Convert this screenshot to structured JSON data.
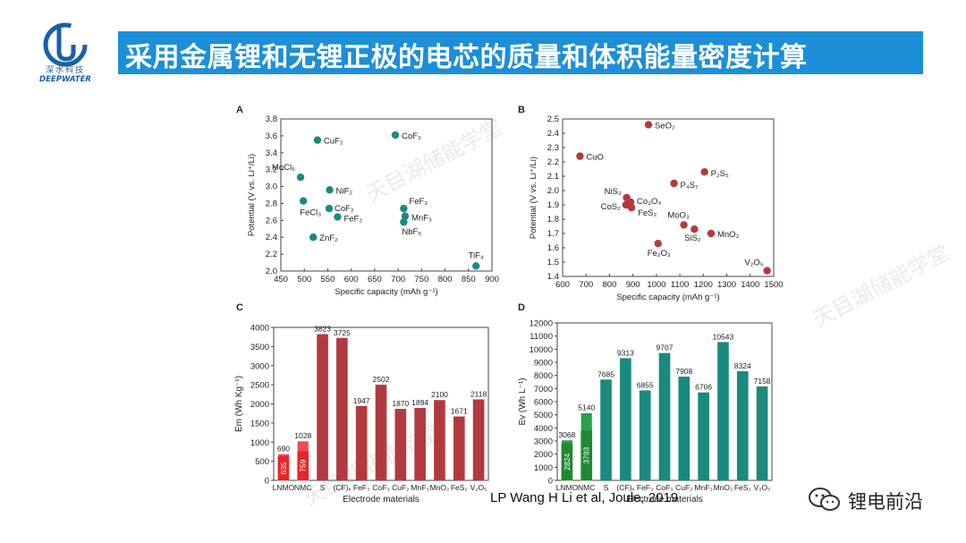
{
  "header": {
    "title": "采用金属锂和无锂正极的电芯的质量和体积能量密度计算",
    "logo_name": "深水科技",
    "logo_sub": "DEEPWATER"
  },
  "watermark": {
    "text": "天目湖储能学堂"
  },
  "citation": "LP Wang H Li et al, Joule, 2019",
  "wechat": {
    "label": "锂电前沿"
  },
  "colors": {
    "title_bg": "#1c8fd8",
    "teal": "#1b8a7e",
    "red": "#b23a3f",
    "bright_red": "#e8252a",
    "green": "#1d8a2e"
  },
  "chart_data": [
    {
      "panel": "A",
      "type": "scatter",
      "xlabel": "Specific capacity (mAh g⁻¹)",
      "ylabel": "Potential (V vs. Li⁺/Li)",
      "xlim": [
        450,
        900
      ],
      "ylim": [
        2.0,
        3.8
      ],
      "xticks": [
        "450",
        "500",
        "550",
        "600",
        "650",
        "700",
        "750",
        "800",
        "850",
        "900"
      ],
      "yticks": [
        "2.0",
        "2.2",
        "2.4",
        "2.6",
        "2.8",
        "3.0",
        "3.2",
        "3.4",
        "3.6",
        "3.8"
      ],
      "points": [
        {
          "label": "CuF₂",
          "x": 528,
          "y": 3.55
        },
        {
          "label": "CoF₃",
          "x": 694,
          "y": 3.61
        },
        {
          "label": "MoCl₅",
          "x": 492,
          "y": 3.11
        },
        {
          "label": "NiF₂",
          "x": 554,
          "y": 2.96
        },
        {
          "label": "FeCl₃",
          "x": 498,
          "y": 2.83
        },
        {
          "label": "CoF₂",
          "x": 553,
          "y": 2.74
        },
        {
          "label": "FeF₂",
          "x": 571,
          "y": 2.64
        },
        {
          "label": "FeF₃",
          "x": 712,
          "y": 2.74
        },
        {
          "label": "MnF₃",
          "x": 715,
          "y": 2.65
        },
        {
          "label": "NbF₅",
          "x": 712,
          "y": 2.58
        },
        {
          "label": "ZnF₂",
          "x": 519,
          "y": 2.4
        },
        {
          "label": "TiF₄",
          "x": 866,
          "y": 2.06
        }
      ]
    },
    {
      "panel": "B",
      "type": "scatter",
      "xlabel": "Specific capacity (mAh g⁻¹)",
      "ylabel": "Potential (V vs. Li⁺/Li)",
      "xlim": [
        600,
        1500
      ],
      "ylim": [
        1.4,
        2.5
      ],
      "xticks": [
        "600",
        "700",
        "800",
        "900",
        "1000",
        "1100",
        "1200",
        "1300",
        "1400",
        "1500"
      ],
      "yticks": [
        "1.4",
        "1.5",
        "1.6",
        "1.7",
        "1.8",
        "1.9",
        "2.0",
        "2.1",
        "2.2",
        "2.3",
        "2.4",
        "2.5"
      ],
      "points": [
        {
          "label": "SeO₂",
          "x": 966,
          "y": 2.46
        },
        {
          "label": "CuO",
          "x": 674,
          "y": 2.24
        },
        {
          "label": "P₂S₅",
          "x": 1205,
          "y": 2.13
        },
        {
          "label": "P₄S₇",
          "x": 1075,
          "y": 2.05
        },
        {
          "label": "NiS₂",
          "x": 873,
          "y": 1.95
        },
        {
          "label": "Co₃O₄",
          "x": 890,
          "y": 1.92
        },
        {
          "label": "CoS₂",
          "x": 870,
          "y": 1.9
        },
        {
          "label": "FeS₂",
          "x": 894,
          "y": 1.88
        },
        {
          "label": "MoO₃",
          "x": 1117,
          "y": 1.76
        },
        {
          "label": "SiS₂",
          "x": 1162,
          "y": 1.73
        },
        {
          "label": "MnO₂",
          "x": 1233,
          "y": 1.7
        },
        {
          "label": "Fe₂O₃",
          "x": 1007,
          "y": 1.63
        },
        {
          "label": "V₂O₅",
          "x": 1472,
          "y": 1.44
        }
      ]
    },
    {
      "panel": "C",
      "type": "bar",
      "xlabel": "Electrode materials",
      "ylabel": "Em (Wh Kg⁻¹)",
      "ylim": [
        0,
        4000
      ],
      "yticks": [
        "0",
        "500",
        "1000",
        "1500",
        "2000",
        "2500",
        "3000",
        "3500",
        "4000"
      ],
      "categories": [
        "LNMO",
        "NMC",
        "S",
        "(CF)ₓ",
        "FeF₃",
        "CoF₃",
        "CuF₂",
        "MnF₃",
        "MnO₂",
        "FeS₂",
        "V₂O₅"
      ],
      "values": [
        690,
        1028,
        3823,
        3725,
        1947,
        2502,
        1870,
        1894,
        2100,
        1671,
        2118
      ],
      "value_labels": [
        "690",
        "1028",
        "3823",
        "3725",
        "1947",
        "2502",
        "1870",
        "1894",
        "2100",
        "1671",
        "2118"
      ],
      "inner_values": [
        635,
        759
      ],
      "inner_labels": [
        "635",
        "759"
      ]
    },
    {
      "panel": "D",
      "type": "bar",
      "xlabel": "Electrode materials",
      "ylabel": "Ev (Wh L⁻¹)",
      "ylim": [
        0,
        12000
      ],
      "yticks": [
        "0",
        "1000",
        "2000",
        "3000",
        "4000",
        "5000",
        "6000",
        "7000",
        "8000",
        "9000",
        "10000",
        "11000",
        "12000"
      ],
      "categories": [
        "LNMO",
        "NMC",
        "S",
        "(CF)ₓ",
        "FeF₃",
        "CoF₃",
        "CuF₂",
        "MnF₃",
        "MnO₂",
        "FeS₂",
        "V₂O₅"
      ],
      "values": [
        3068,
        5140,
        7685,
        9313,
        6855,
        9707,
        7908,
        6706,
        10543,
        8324,
        7158
      ],
      "value_labels": [
        "3068",
        "5140",
        "7685",
        "9313",
        "6855",
        "9707",
        "7908",
        "6706",
        "10543",
        "8324",
        "7158"
      ],
      "inner_values": [
        2824,
        3793
      ],
      "inner_labels": [
        "2824",
        "3793"
      ]
    }
  ]
}
